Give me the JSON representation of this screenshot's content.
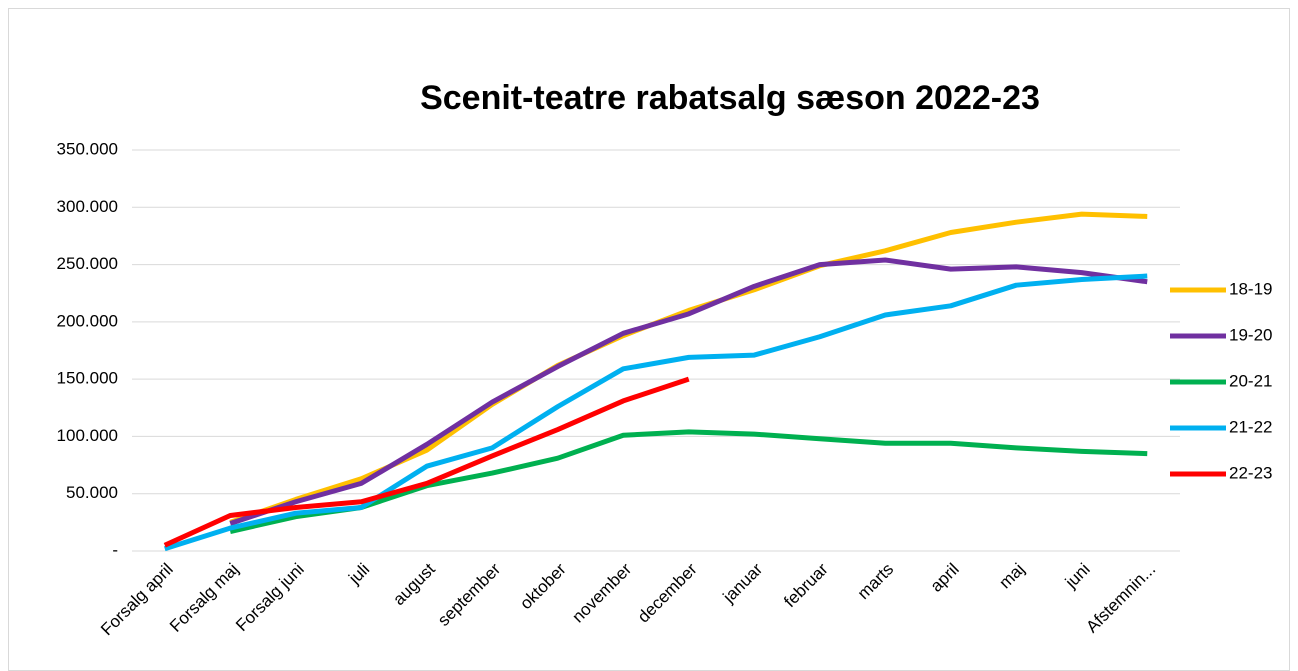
{
  "chart_data": {
    "type": "line",
    "title": "Scenit-teatre rabatsalg sæson 2022-23",
    "categories": [
      "Forsalg april",
      "Forsalg maj",
      "Forsalg juni",
      "juli",
      "august",
      "september",
      "oktober",
      "november",
      "december",
      "januar",
      "februar",
      "marts",
      "april",
      "maj",
      "juni",
      "Afstemnin..."
    ],
    "series": [
      {
        "name": "18-19",
        "color": "#ffc000",
        "values": [
          null,
          25000,
          45000,
          63000,
          88000,
          128000,
          162000,
          188000,
          210000,
          228000,
          249000,
          262000,
          278000,
          287000,
          294000,
          292000
        ]
      },
      {
        "name": "19-20",
        "color": "#7030a0",
        "values": [
          null,
          24000,
          43000,
          59000,
          93000,
          130000,
          161000,
          190000,
          207000,
          231000,
          250000,
          254000,
          246000,
          248000,
          243000,
          235000
        ]
      },
      {
        "name": "20-21",
        "color": "#00b050",
        "values": [
          null,
          17000,
          30000,
          38000,
          57000,
          68000,
          81000,
          101000,
          104000,
          102000,
          98000,
          94000,
          94000,
          90000,
          87000,
          85000
        ]
      },
      {
        "name": "21-22",
        "color": "#00b0f0",
        "values": [
          2000,
          20000,
          33000,
          38000,
          74000,
          90000,
          126000,
          159000,
          169000,
          171000,
          187000,
          206000,
          214000,
          232000,
          237000,
          240000
        ]
      },
      {
        "name": "22-23",
        "color": "#ff0000",
        "values": [
          5000,
          31000,
          38000,
          43000,
          59000,
          83000,
          106000,
          131000,
          150000,
          null,
          null,
          null,
          null,
          null,
          null,
          null
        ]
      }
    ],
    "ylim": [
      0,
      350000
    ],
    "yticks": [
      {
        "value": 0,
        "label": "-"
      },
      {
        "value": 50000,
        "label": "50.000"
      },
      {
        "value": 100000,
        "label": "100.000"
      },
      {
        "value": 150000,
        "label": "150.000"
      },
      {
        "value": 200000,
        "label": "200.000"
      },
      {
        "value": 250000,
        "label": "250.000"
      },
      {
        "value": 300000,
        "label": "300.000"
      },
      {
        "value": 350000,
        "label": "350.000"
      }
    ],
    "grid": true,
    "legend": "right"
  }
}
